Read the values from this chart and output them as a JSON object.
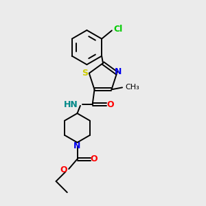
{
  "background_color": "#ebebeb",
  "line_color": "#000000",
  "line_width": 1.4,
  "figsize": [
    3.0,
    3.0
  ],
  "dpi": 100,
  "colors": {
    "Cl": "#00cc00",
    "S": "#cccc00",
    "N": "#0000ee",
    "O": "#ff0000",
    "H": "#888888",
    "C": "#000000"
  }
}
